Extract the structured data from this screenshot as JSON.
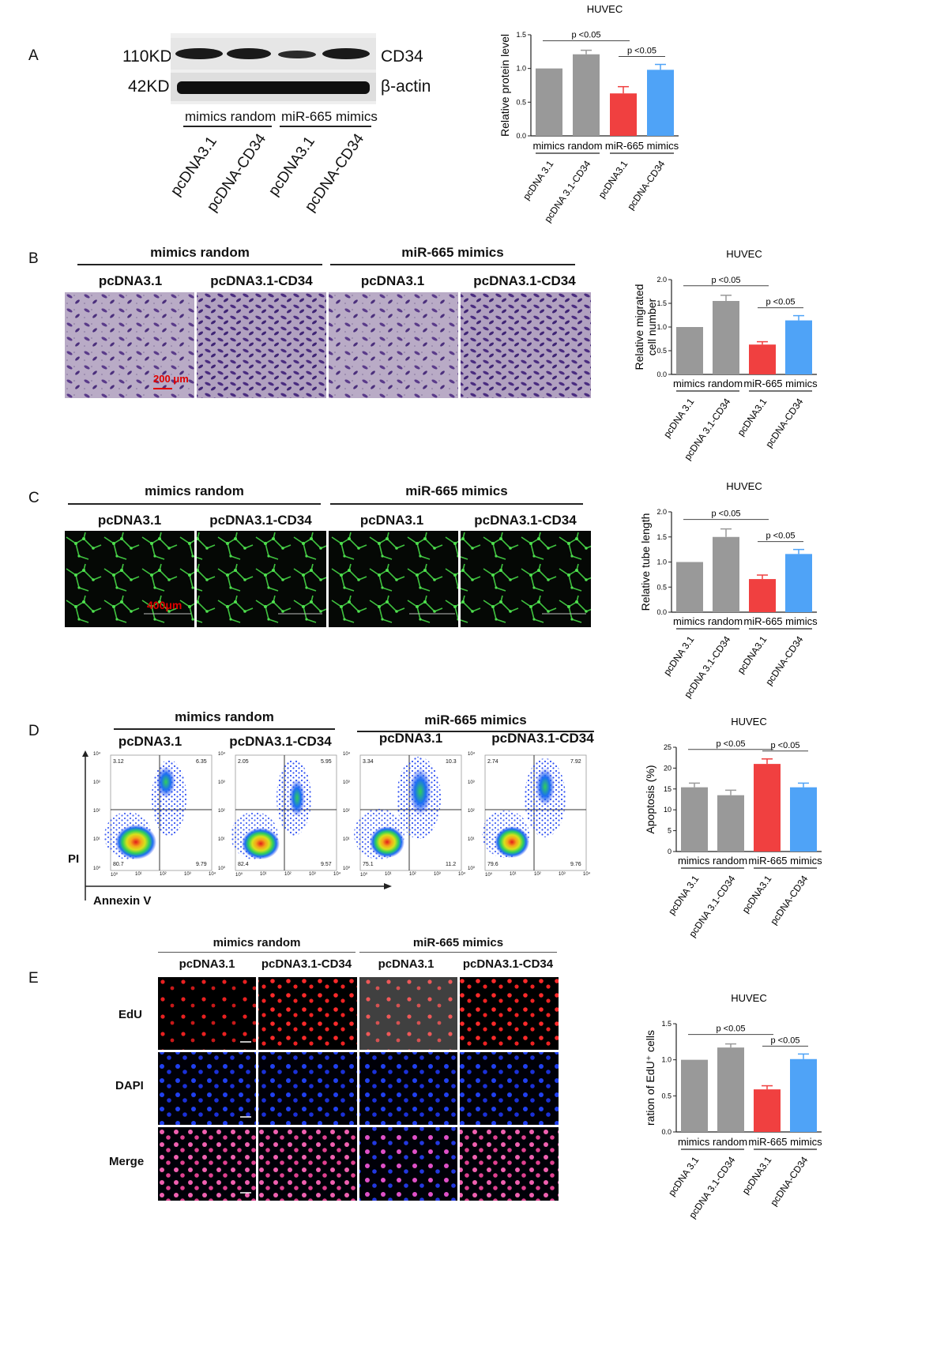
{
  "panel_a": {
    "letter": "A",
    "markers": [
      "110KD",
      "42KD"
    ],
    "proteins": [
      "CD34",
      "β-actin"
    ],
    "groups": [
      "mimics random",
      "miR-665 mimics"
    ],
    "lanes": [
      "pcDNA3.1",
      "pcDNA-CD34",
      "pcDNA3.1",
      "pcDNA-CD34"
    ]
  },
  "panel_b": {
    "letter": "B",
    "groups": [
      "mimics random",
      "miR-665 mimics"
    ],
    "conditions": [
      "pcDNA3.1",
      "pcDNA3.1-CD34",
      "pcDNA3.1",
      "pcDNA3.1-CD34"
    ],
    "scale_label": "200 μm"
  },
  "panel_c": {
    "letter": "C",
    "groups": [
      "mimics random",
      "miR-665 mimics"
    ],
    "conditions": [
      "pcDNA3.1",
      "pcDNA3.1-CD34",
      "pcDNA3.1",
      "pcDNA3.1-CD34"
    ],
    "scale_label": "400μm"
  },
  "panel_d": {
    "letter": "D",
    "groups": [
      "mimics random",
      "miR-665 mimics"
    ],
    "conditions": [
      "pcDNA3.1",
      "pcDNA3.1-CD34",
      "pcDNA3.1",
      "pcDNA3.1-CD34"
    ],
    "y_axis": "PI",
    "x_axis": "Annexin V",
    "quadrants": [
      [
        "3.12",
        "6.35",
        "80.7",
        "9.79"
      ],
      [
        "2.05",
        "5.95",
        "82.4",
        "9.57"
      ],
      [
        "3.34",
        "10.3",
        "75.1",
        "11.2"
      ],
      [
        "2.74",
        "7.92",
        "79.6",
        "9.76"
      ]
    ],
    "ticks": [
      "10⁰",
      "10¹",
      "10²",
      "10³",
      "10⁴"
    ]
  },
  "panel_e": {
    "letter": "E",
    "groups": [
      "mimics random",
      "miR-665 mimics"
    ],
    "conditions": [
      "pcDNA3.1",
      "pcDNA3.1-CD34",
      "pcDNA3.1",
      "pcDNA3.1-CD34"
    ],
    "rows": [
      "EdU",
      "DAPI",
      "Merge"
    ]
  },
  "chart_colors": {
    "gray": "#999999",
    "red": "#f04040",
    "blue": "#4fa3f7"
  },
  "chart_data": [
    {
      "type": "bar",
      "panel": "A",
      "title": "HUVEC",
      "ylabel": "Relative protein level",
      "ylim": [
        0,
        1.5
      ],
      "yticks": [
        "0.0",
        "0.5",
        "1.0",
        "1.5"
      ],
      "categories": [
        "pcDNA 3.1",
        "pcDNA 3.1-CD34",
        "pcDNA3.1",
        "pcDNA-CD34"
      ],
      "values": [
        1.0,
        1.21,
        0.63,
        0.98
      ],
      "errors": [
        0,
        0.06,
        0.1,
        0.08
      ],
      "group_labels": [
        "mimics random",
        "miR-665 mimics"
      ],
      "annotations": [
        "p <0.05",
        "p <0.05"
      ]
    },
    {
      "type": "bar",
      "panel": "B",
      "title": "HUVEC",
      "ylabel": "Relative migrated cell number",
      "ylim": [
        0,
        2.0
      ],
      "yticks": [
        "0.0",
        "0.5",
        "1.0",
        "1.5",
        "2.0"
      ],
      "categories": [
        "pcDNA 3.1",
        "pcDNA 3.1-CD34",
        "pcDNA3.1",
        "pcDNA-CD34"
      ],
      "values": [
        1.0,
        1.55,
        0.63,
        1.14
      ],
      "errors": [
        0,
        0.12,
        0.06,
        0.1
      ],
      "group_labels": [
        "mimics random",
        "miR-665 mimics"
      ],
      "annotations": [
        "p <0.05",
        "p <0.05"
      ]
    },
    {
      "type": "bar",
      "panel": "C",
      "title": "HUVEC",
      "ylabel": "Relative tube length",
      "ylim": [
        0,
        2.0
      ],
      "yticks": [
        "0.0",
        "0.5",
        "1.0",
        "1.5",
        "2.0"
      ],
      "categories": [
        "pcDNA 3.1",
        "pcDNA 3.1-CD34",
        "pcDNA3.1",
        "pcDNA-CD34"
      ],
      "values": [
        1.0,
        1.5,
        0.66,
        1.16
      ],
      "errors": [
        0,
        0.16,
        0.08,
        0.09
      ],
      "group_labels": [
        "mimics random",
        "miR-665 mimics"
      ],
      "annotations": [
        "p <0.05",
        "p <0.05"
      ]
    },
    {
      "type": "bar",
      "panel": "D",
      "title": "HUVEC",
      "ylabel": "Apoptosis (%)",
      "ylim": [
        0,
        25
      ],
      "yticks": [
        "0",
        "5",
        "10",
        "15",
        "20",
        "25"
      ],
      "categories": [
        "pcDNA 3.1",
        "pcDNA 3.1-CD34",
        "pcDNA3.1",
        "pcDNA-CD34"
      ],
      "values": [
        15.4,
        13.5,
        21.0,
        15.4
      ],
      "errors": [
        1.0,
        1.2,
        1.2,
        1.0
      ],
      "group_labels": [
        "mimics random",
        "miR-665 mimics"
      ],
      "annotations": [
        "p <0.05",
        "p <0.05"
      ]
    },
    {
      "type": "bar",
      "panel": "E",
      "title": "HUVEC",
      "ylabel": "ration of EdU⁺ cells",
      "ylim": [
        0,
        1.5
      ],
      "yticks": [
        "0.0",
        "0.5",
        "1.0",
        "1.5"
      ],
      "categories": [
        "pcDNA 3.1",
        "pcDNA 3.1-CD34",
        "pcDNA3.1",
        "pcDNA-CD34"
      ],
      "values": [
        1.0,
        1.17,
        0.59,
        1.01
      ],
      "errors": [
        0,
        0.05,
        0.05,
        0.07
      ],
      "group_labels": [
        "mimics random",
        "miR-665 mimics"
      ],
      "annotations": [
        "p <0.05",
        "p <0.05"
      ]
    }
  ]
}
